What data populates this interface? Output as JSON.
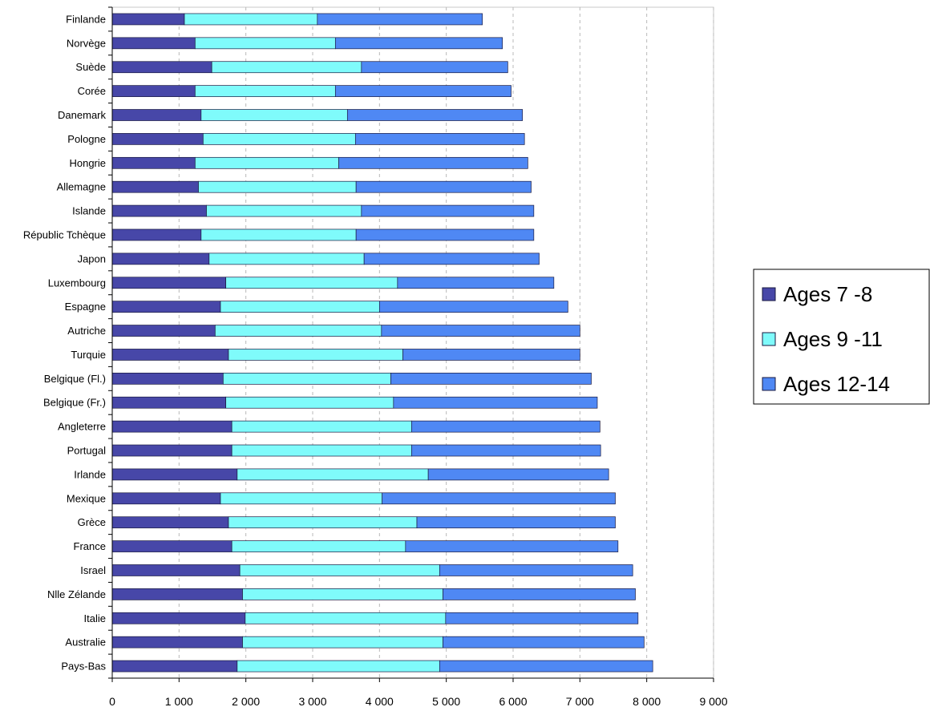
{
  "chart_data": {
    "type": "bar",
    "orientation": "horizontal",
    "stacked": true,
    "title": "",
    "xlabel": "",
    "ylabel": "",
    "xlim": [
      0,
      9000
    ],
    "xticks": [
      0,
      1000,
      2000,
      3000,
      4000,
      5000,
      6000,
      7000,
      8000,
      9000
    ],
    "xtick_labels": [
      "0",
      "1 000",
      "2 000",
      "3 000",
      "4 000",
      "5 000",
      "6 000",
      "7 000",
      "8 000",
      "9 000"
    ],
    "grid": "vertical-dashed",
    "legend_position": "right",
    "categories": [
      "Finlande",
      "Norvège",
      "Suède",
      "Corée",
      "Danemark",
      "Pologne",
      "Hongrie",
      "Allemagne",
      "Islande",
      "Républic Tchèque",
      "Japon",
      "Luxembourg",
      "Espagne",
      "Autriche",
      "Turquie",
      "Belgique (Fl.)",
      "Belgique (Fr.)",
      "Angleterre",
      "Portugal",
      "Irlande",
      "Mexique",
      "Grèce",
      "France",
      "Israel",
      "Nlle Zélande",
      "Italie",
      "Australie",
      "Pays-Bas"
    ],
    "series": [
      {
        "name": "Ages 7 -8",
        "color": "#4747a8",
        "values": [
          1080,
          1240,
          1490,
          1240,
          1330,
          1360,
          1240,
          1290,
          1410,
          1330,
          1450,
          1700,
          1620,
          1540,
          1740,
          1660,
          1700,
          1790,
          1790,
          1870,
          1620,
          1740,
          1790,
          1910,
          1950,
          1990,
          1950,
          1870
        ]
      },
      {
        "name": "Ages 9 -11",
        "color": "#7ffbfb",
        "values": [
          1990,
          2100,
          2240,
          2100,
          2190,
          2280,
          2150,
          2360,
          2320,
          2320,
          2320,
          2570,
          2380,
          2490,
          2610,
          2510,
          2510,
          2690,
          2690,
          2860,
          2420,
          2820,
          2600,
          2990,
          3000,
          3000,
          3000,
          3030
        ]
      },
      {
        "name": "Ages 12-14",
        "color": "#4f88f4",
        "values": [
          2470,
          2500,
          2190,
          2630,
          2620,
          2530,
          2830,
          2620,
          2580,
          2660,
          2620,
          2340,
          2820,
          2970,
          2650,
          3000,
          3050,
          2820,
          2830,
          2700,
          3490,
          2970,
          3180,
          2890,
          2880,
          2880,
          3010,
          3190
        ]
      }
    ]
  }
}
